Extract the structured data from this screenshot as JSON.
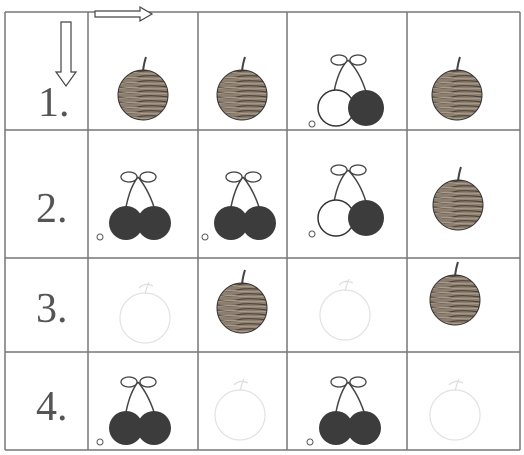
{
  "rows": [
    {
      "label": "1."
    },
    {
      "label": "2."
    },
    {
      "label": "3."
    },
    {
      "label": "4."
    }
  ]
}
